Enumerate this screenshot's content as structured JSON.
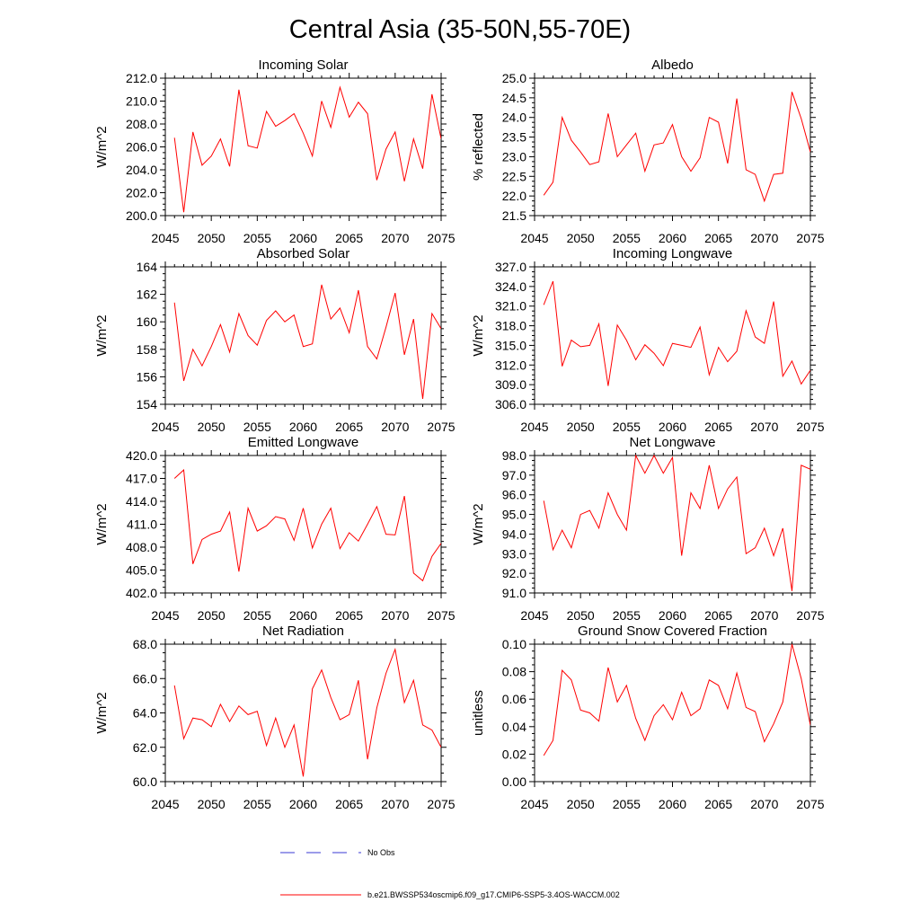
{
  "figure": {
    "title": "Central Asia (35-50N,55-70E)"
  },
  "legend": {
    "entries": [
      {
        "label": "No Obs",
        "style": "dashed",
        "color": "#3a3ad6"
      },
      {
        "label": "b.e21.BWSSP534oscmip6.f09_g17.CMIP6-SSP5-3.4OS-WACCM.002",
        "style": "solid",
        "color": "#ff0000"
      }
    ]
  },
  "chart_data": [
    {
      "type": "line",
      "title": "Incoming Solar",
      "ylabel": "W/m^2",
      "xlim": [
        2045,
        2075
      ],
      "ylim": [
        200,
        212
      ],
      "yticks": [
        "200.0",
        "202.0",
        "204.0",
        "206.0",
        "208.0",
        "210.0",
        "212.0"
      ],
      "xticks": [
        "2045",
        "2050",
        "2055",
        "2060",
        "2065",
        "2070",
        "2075"
      ],
      "x": [
        2046,
        2047,
        2048,
        2049,
        2050,
        2051,
        2052,
        2053,
        2054,
        2055,
        2056,
        2057,
        2058,
        2059,
        2060,
        2061,
        2062,
        2063,
        2064,
        2065,
        2066,
        2067,
        2068,
        2069,
        2070,
        2071,
        2072,
        2073,
        2074,
        2075
      ],
      "series": [
        {
          "name": "model",
          "color": "#ff0000",
          "values": [
            206.8,
            200.3,
            207.3,
            204.4,
            205.2,
            206.7,
            204.3,
            211.0,
            206.1,
            205.9,
            209.1,
            207.8,
            208.3,
            208.9,
            207.2,
            205.2,
            210.0,
            207.7,
            211.2,
            208.6,
            209.9,
            208.9,
            203.1,
            205.8,
            207.3,
            203.0,
            206.7,
            204.1,
            210.6,
            206.7
          ]
        }
      ]
    },
    {
      "type": "line",
      "title": "Albedo",
      "ylabel": "% reflected",
      "xlim": [
        2045,
        2075
      ],
      "ylim": [
        21.5,
        25.0
      ],
      "yticks": [
        "21.5",
        "22.0",
        "22.5",
        "23.0",
        "23.5",
        "24.0",
        "24.5",
        "25.0"
      ],
      "xticks": [
        "2045",
        "2050",
        "2055",
        "2060",
        "2065",
        "2070",
        "2075"
      ],
      "x": [
        2046,
        2047,
        2048,
        2049,
        2050,
        2051,
        2052,
        2053,
        2054,
        2055,
        2056,
        2057,
        2058,
        2059,
        2060,
        2061,
        2062,
        2063,
        2064,
        2065,
        2066,
        2067,
        2068,
        2069,
        2070,
        2071,
        2072,
        2073,
        2074,
        2075
      ],
      "series": [
        {
          "name": "model",
          "color": "#ff0000",
          "values": [
            22.02,
            22.35,
            24.0,
            23.42,
            23.12,
            22.8,
            22.87,
            24.1,
            23.0,
            23.3,
            23.6,
            22.63,
            23.3,
            23.35,
            23.82,
            23.0,
            22.63,
            22.97,
            24.0,
            23.88,
            22.83,
            24.48,
            22.67,
            22.55,
            21.87,
            22.55,
            22.58,
            24.65,
            23.97,
            23.12
          ]
        }
      ]
    },
    {
      "type": "line",
      "title": "Absorbed Solar",
      "ylabel": "W/m^2",
      "xlim": [
        2045,
        2075
      ],
      "ylim": [
        154,
        164
      ],
      "yticks": [
        "154",
        "156",
        "158",
        "160",
        "162",
        "164"
      ],
      "xticks": [
        "2045",
        "2050",
        "2055",
        "2060",
        "2065",
        "2070",
        "2075"
      ],
      "x": [
        2046,
        2047,
        2048,
        2049,
        2050,
        2051,
        2052,
        2053,
        2054,
        2055,
        2056,
        2057,
        2058,
        2059,
        2060,
        2061,
        2062,
        2063,
        2064,
        2065,
        2066,
        2067,
        2068,
        2069,
        2070,
        2071,
        2072,
        2073,
        2074,
        2075
      ],
      "series": [
        {
          "name": "model",
          "color": "#ff0000",
          "values": [
            161.4,
            155.7,
            158.0,
            156.8,
            158.2,
            159.8,
            157.8,
            160.6,
            159.0,
            158.3,
            160.1,
            160.8,
            160.0,
            160.5,
            158.2,
            158.4,
            162.7,
            160.2,
            161.0,
            159.2,
            162.3,
            158.2,
            157.3,
            159.6,
            162.1,
            157.6,
            160.2,
            154.4,
            160.6,
            159.5
          ]
        }
      ]
    },
    {
      "type": "line",
      "title": "Incoming Longwave",
      "ylabel": "W/m^2",
      "xlim": [
        2045,
        2075
      ],
      "ylim": [
        306,
        327
      ],
      "yticks": [
        "306.0",
        "309.0",
        "312.0",
        "315.0",
        "318.0",
        "321.0",
        "324.0",
        "327.0"
      ],
      "xticks": [
        "2045",
        "2050",
        "2055",
        "2060",
        "2065",
        "2070",
        "2075"
      ],
      "x": [
        2046,
        2047,
        2048,
        2049,
        2050,
        2051,
        2052,
        2053,
        2054,
        2055,
        2056,
        2057,
        2058,
        2059,
        2060,
        2061,
        2062,
        2063,
        2064,
        2065,
        2066,
        2067,
        2068,
        2069,
        2070,
        2071,
        2072,
        2073,
        2074,
        2075
      ],
      "series": [
        {
          "name": "model",
          "color": "#ff0000",
          "values": [
            321.2,
            324.8,
            311.8,
            315.8,
            314.8,
            315.0,
            318.3,
            308.8,
            318.1,
            315.8,
            312.8,
            315.1,
            313.8,
            311.9,
            315.3,
            315.0,
            314.7,
            317.8,
            310.5,
            314.7,
            312.5,
            314.1,
            320.3,
            316.3,
            315.3,
            321.7,
            310.3,
            312.6,
            309.1,
            311.2
          ]
        }
      ]
    },
    {
      "type": "line",
      "title": "Emitted Longwave",
      "ylabel": "W/m^2",
      "xlim": [
        2045,
        2075
      ],
      "ylim": [
        402,
        420
      ],
      "yticks": [
        "402.0",
        "405.0",
        "408.0",
        "411.0",
        "414.0",
        "417.0",
        "420.0"
      ],
      "xticks": [
        "2045",
        "2050",
        "2055",
        "2060",
        "2065",
        "2070",
        "2075"
      ],
      "x": [
        2046,
        2047,
        2048,
        2049,
        2050,
        2051,
        2052,
        2053,
        2054,
        2055,
        2056,
        2057,
        2058,
        2059,
        2060,
        2061,
        2062,
        2063,
        2064,
        2065,
        2066,
        2067,
        2068,
        2069,
        2070,
        2071,
        2072,
        2073,
        2074,
        2075
      ],
      "series": [
        {
          "name": "model",
          "color": "#ff0000",
          "values": [
            417.0,
            418.1,
            405.8,
            409.0,
            409.7,
            410.1,
            412.6,
            404.8,
            413.1,
            410.1,
            410.8,
            412.0,
            411.7,
            408.9,
            413.1,
            407.9,
            411.0,
            413.1,
            407.8,
            409.9,
            408.8,
            411.0,
            413.3,
            409.7,
            409.6,
            414.7,
            404.6,
            403.6,
            406.8,
            408.5
          ]
        }
      ]
    },
    {
      "type": "line",
      "title": "Net Longwave",
      "ylabel": "W/m^2",
      "xlim": [
        2045,
        2075
      ],
      "ylim": [
        91,
        98
      ],
      "yticks": [
        "91.0",
        "92.0",
        "93.0",
        "94.0",
        "95.0",
        "96.0",
        "97.0",
        "98.0"
      ],
      "xticks": [
        "2045",
        "2050",
        "2055",
        "2060",
        "2065",
        "2070",
        "2075"
      ],
      "x": [
        2046,
        2047,
        2048,
        2049,
        2050,
        2051,
        2052,
        2053,
        2054,
        2055,
        2056,
        2057,
        2058,
        2059,
        2060,
        2061,
        2062,
        2063,
        2064,
        2065,
        2066,
        2067,
        2068,
        2069,
        2070,
        2071,
        2072,
        2073,
        2074,
        2075
      ],
      "series": [
        {
          "name": "model",
          "color": "#ff0000",
          "values": [
            95.7,
            93.2,
            94.2,
            93.3,
            95.0,
            95.2,
            94.3,
            96.1,
            95.0,
            94.2,
            98.0,
            97.1,
            98.0,
            97.1,
            97.9,
            92.9,
            96.1,
            95.3,
            97.5,
            95.3,
            96.3,
            96.9,
            93.0,
            93.3,
            94.3,
            92.9,
            94.3,
            91.1,
            97.5,
            97.3
          ]
        }
      ]
    },
    {
      "type": "line",
      "title": "Net Radiation",
      "ylabel": "W/m^2",
      "xlim": [
        2045,
        2075
      ],
      "ylim": [
        60,
        68
      ],
      "yticks": [
        "60.0",
        "62.0",
        "64.0",
        "66.0",
        "68.0"
      ],
      "xticks": [
        "2045",
        "2050",
        "2055",
        "2060",
        "2065",
        "2070",
        "2075"
      ],
      "x": [
        2046,
        2047,
        2048,
        2049,
        2050,
        2051,
        2052,
        2053,
        2054,
        2055,
        2056,
        2057,
        2058,
        2059,
        2060,
        2061,
        2062,
        2063,
        2064,
        2065,
        2066,
        2067,
        2068,
        2069,
        2070,
        2071,
        2072,
        2073,
        2074,
        2075
      ],
      "series": [
        {
          "name": "model",
          "color": "#ff0000",
          "values": [
            65.6,
            62.5,
            63.7,
            63.6,
            63.2,
            64.5,
            63.5,
            64.4,
            63.9,
            64.1,
            62.1,
            63.7,
            62.0,
            63.3,
            60.3,
            65.4,
            66.5,
            64.9,
            63.6,
            63.9,
            65.9,
            61.3,
            64.3,
            66.3,
            67.7,
            64.6,
            65.9,
            63.3,
            63.0,
            62.0
          ]
        }
      ]
    },
    {
      "type": "line",
      "title": "Ground Snow Covered Fraction",
      "ylabel": "unitless",
      "xlim": [
        2045,
        2075
      ],
      "ylim": [
        0,
        0.1
      ],
      "yticks": [
        "0.00",
        "0.02",
        "0.04",
        "0.06",
        "0.08",
        "0.10"
      ],
      "xticks": [
        "2045",
        "2050",
        "2055",
        "2060",
        "2065",
        "2070",
        "2075"
      ],
      "x": [
        2046,
        2047,
        2048,
        2049,
        2050,
        2051,
        2052,
        2053,
        2054,
        2055,
        2056,
        2057,
        2058,
        2059,
        2060,
        2061,
        2062,
        2063,
        2064,
        2065,
        2066,
        2067,
        2068,
        2069,
        2070,
        2071,
        2072,
        2073,
        2074,
        2075
      ],
      "series": [
        {
          "name": "model",
          "color": "#ff0000",
          "values": [
            0.019,
            0.03,
            0.081,
            0.074,
            0.052,
            0.05,
            0.044,
            0.083,
            0.058,
            0.07,
            0.046,
            0.03,
            0.048,
            0.056,
            0.045,
            0.065,
            0.048,
            0.053,
            0.074,
            0.07,
            0.053,
            0.079,
            0.054,
            0.051,
            0.029,
            0.042,
            0.058,
            0.1,
            0.075,
            0.041
          ]
        }
      ]
    }
  ]
}
